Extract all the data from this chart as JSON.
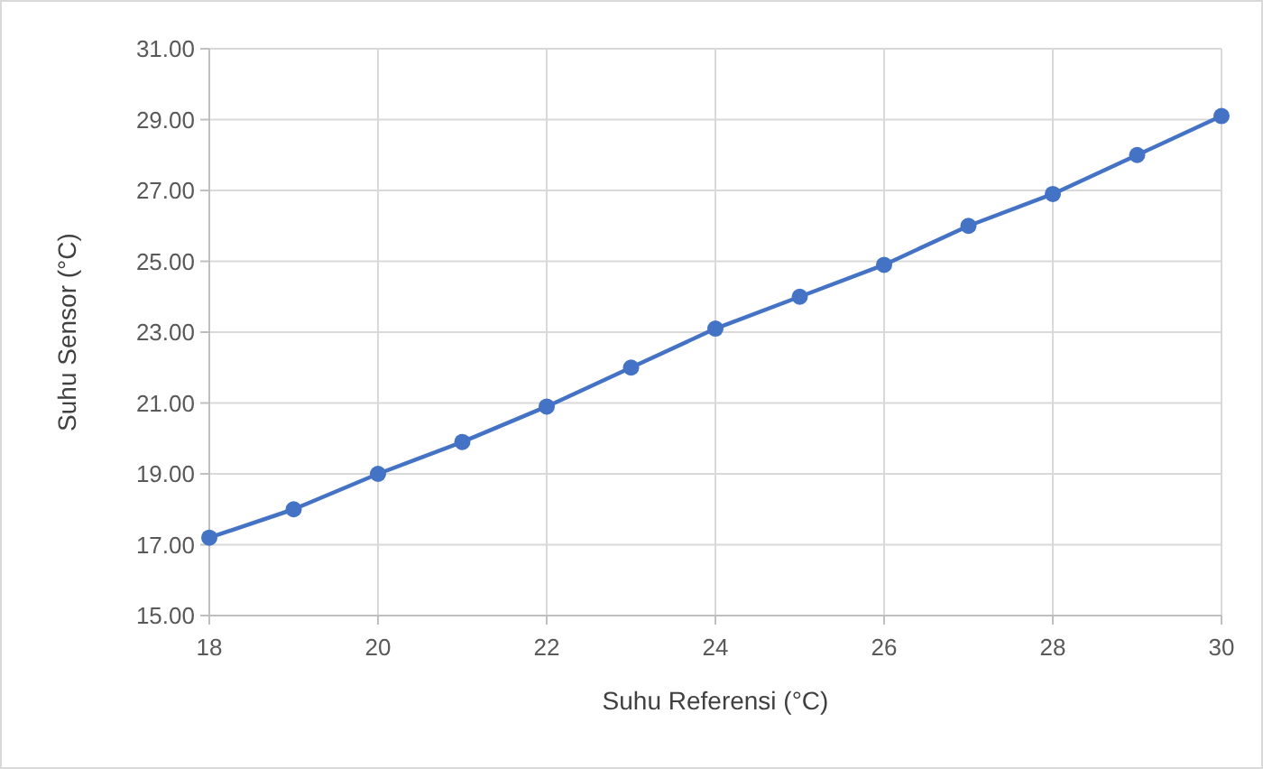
{
  "chart_data": {
    "type": "line",
    "xlabel": "Suhu Referensi  (°C)",
    "ylabel": "Suhu Sensor (°C)",
    "x": [
      18,
      19,
      20,
      21,
      22,
      23,
      24,
      25,
      26,
      27,
      28,
      29,
      30
    ],
    "series": [
      {
        "color": "#4472c4",
        "values": [
          17.2,
          18.0,
          19.0,
          19.9,
          20.9,
          22.0,
          23.1,
          24.0,
          24.9,
          26.0,
          26.9,
          28.0,
          29.1
        ]
      }
    ],
    "xlim": [
      18,
      30
    ],
    "xticks": [
      18,
      20,
      22,
      24,
      26,
      28,
      30
    ],
    "ylim": [
      15,
      31
    ],
    "yticks": [
      {
        "value": 15,
        "label": "15.00"
      },
      {
        "value": 17,
        "label": "17.00"
      },
      {
        "value": 19,
        "label": "19.00"
      },
      {
        "value": 21,
        "label": "21.00"
      },
      {
        "value": 23,
        "label": "23.00"
      },
      {
        "value": 25,
        "label": "25.00"
      },
      {
        "value": 27,
        "label": "27.00"
      },
      {
        "value": 29,
        "label": "29.00"
      },
      {
        "value": 31,
        "label": "31.00"
      }
    ],
    "grid": true,
    "marker": "circle",
    "line_style": "solid"
  }
}
